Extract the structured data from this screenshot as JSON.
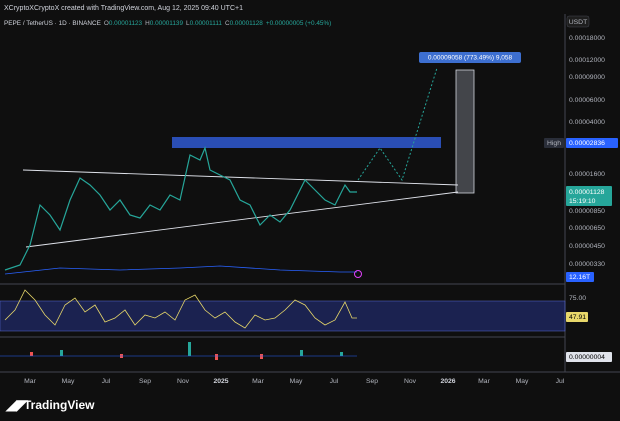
{
  "header": {
    "attribution": "XCryptoXCryptoX created with TradingView.com, Aug 12, 2025 09:40 UTC+1",
    "symbol": "PEPE / TetherUS · 1D · BINANCE",
    "ohlc": [
      {
        "label": "O",
        "value": "0.00001123"
      },
      {
        "label": "H",
        "value": "0.00001139"
      },
      {
        "label": "L",
        "value": "0.00001111"
      },
      {
        "label": "C",
        "value": "0.00001128"
      }
    ],
    "change": "+0.00000005 (+0.45%)"
  },
  "price_axis": {
    "currency": "USDT",
    "labels": [
      "0.00018000",
      "0.00012000",
      "0.00009000",
      "0.00006000",
      "0.00004000",
      "0.00001600",
      "0.00000850",
      "0.00000650",
      "0.00000450",
      "0.00000330"
    ],
    "high_label": "High",
    "high_value": "0.00002836",
    "last_price": "0.00001128",
    "countdown": "15:19:10",
    "volume": "12.16T"
  },
  "rsi": {
    "level": "75.00",
    "value": "47.91"
  },
  "macd": {
    "value": "0.00000004"
  },
  "time_axis": [
    "Mar",
    "May",
    "Jul",
    "Sep",
    "Nov",
    "2025",
    "Mar",
    "May",
    "Jul",
    "Sep",
    "Nov",
    "2026",
    "Mar",
    "May",
    "Jul"
  ],
  "annotation": "0.00009058 (773.49%) 9,058",
  "brand": "TradingView"
}
